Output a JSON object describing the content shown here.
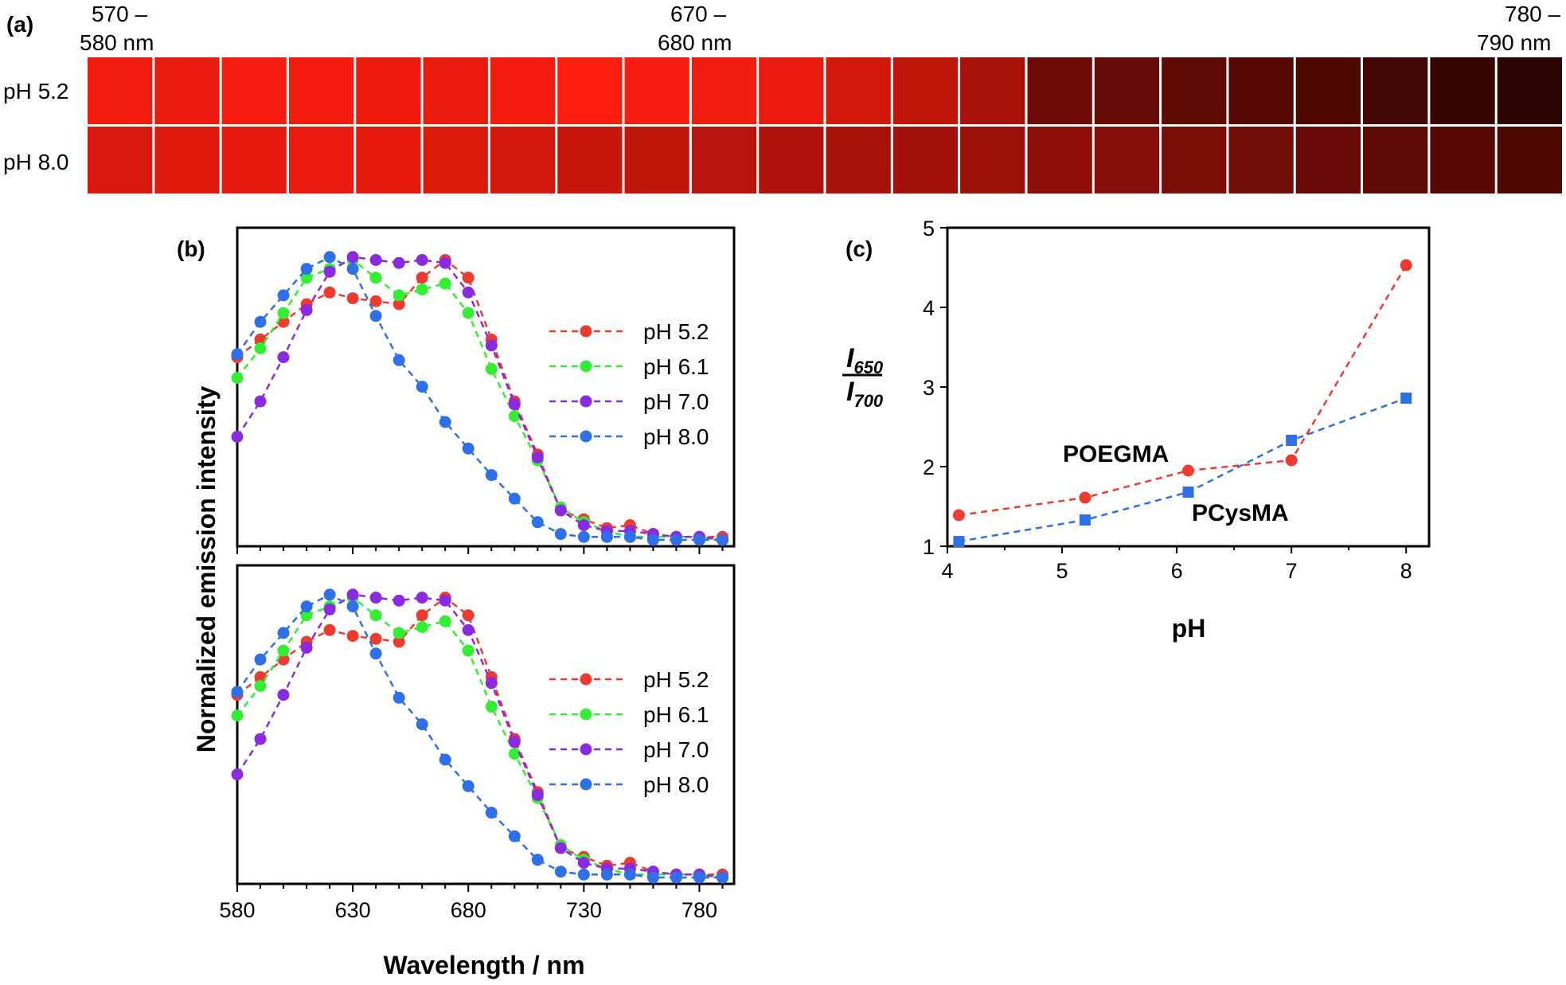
{
  "panel_a": {
    "panel_label": "(a)",
    "wavelength_labels": [
      {
        "line1": "570 –",
        "line2": "580 nm"
      },
      {
        "line1": "670 –",
        "line2": "680 nm"
      },
      {
        "line1": "780 –",
        "line2": "790 nm"
      }
    ],
    "row_labels": [
      "pH 5.2",
      "pH 8.0"
    ],
    "tile_colors": {
      "row_1": [
        "#f11b0e",
        "#ea1a0e",
        "#f61c0f",
        "#f31b0e",
        "#ee1a0e",
        "#e91a0e",
        "#f51c0f",
        "#fb1e10",
        "#f81d10",
        "#f21c0f",
        "#ea1a0e",
        "#d4180c",
        "#bf150b",
        "#a9120a",
        "#6d0b06",
        "#650a06",
        "#5e0a05",
        "#560905",
        "#4d0804",
        "#410703",
        "#360603",
        "#2c0502"
      ],
      "row_2": [
        "#d8180c",
        "#dd190d",
        "#e51a0e",
        "#e81b0e",
        "#e51a0e",
        "#dc190d",
        "#d2170c",
        "#c8160b",
        "#bf150b",
        "#b7140b",
        "#af130a",
        "#a8120a",
        "#a11109",
        "#991009",
        "#8f0f08",
        "#860e08",
        "#7c0d07",
        "#720c06",
        "#680b06",
        "#5e0a05",
        "#560905",
        "#4e0804"
      ]
    }
  },
  "panel_b": {
    "panel_label": "(b)",
    "ylabel": "Normalized emission intensity",
    "xlabel": "Wavelength / nm"
  },
  "panel_c": {
    "panel_label": "(c)",
    "ylabel": {
      "main": "I",
      "numerator_sub": "650",
      "denominator_sub": "700"
    },
    "xlabel": "pH",
    "annotations": [
      "POEGMA",
      "PCysMA"
    ]
  },
  "colors": {
    "ph52": "#ee3b2f",
    "ph61": "#33ee33",
    "ph70": "#8a2be2",
    "ph80": "#2f6fe8",
    "poegma": "#ee3b2f",
    "pcysma": "#2f6fe8"
  },
  "chart_data": [
    {
      "type": "line",
      "panel": "b-top",
      "x": [
        580,
        590,
        600,
        610,
        620,
        630,
        640,
        650,
        660,
        670,
        680,
        690,
        700,
        710,
        720,
        730,
        740,
        750,
        760,
        770,
        780,
        790
      ],
      "series": [
        {
          "name": "pH 5.2",
          "values": [
            0.62,
            0.68,
            0.74,
            0.8,
            0.84,
            0.82,
            0.81,
            0.8,
            0.89,
            0.95,
            0.89,
            0.68,
            0.47,
            0.29,
            0.1,
            0.07,
            0.04,
            0.05,
            0.02,
            0.01,
            0.01,
            0.01
          ]
        },
        {
          "name": "pH 6.1",
          "values": [
            0.55,
            0.65,
            0.77,
            0.89,
            0.92,
            0.95,
            0.89,
            0.83,
            0.85,
            0.87,
            0.77,
            0.58,
            0.42,
            0.27,
            0.11,
            0.06,
            0.03,
            0.01,
            0.01,
            0.01,
            0.01,
            0.0
          ]
        },
        {
          "name": "pH 7.0",
          "values": [
            0.35,
            0.47,
            0.62,
            0.78,
            0.91,
            0.96,
            0.95,
            0.94,
            0.95,
            0.94,
            0.84,
            0.66,
            0.46,
            0.28,
            0.1,
            0.05,
            0.03,
            0.03,
            0.02,
            0.01,
            0.01,
            0.0
          ]
        },
        {
          "name": "pH 8.0",
          "values": [
            0.63,
            0.74,
            0.83,
            0.92,
            0.96,
            0.92,
            0.76,
            0.61,
            0.52,
            0.4,
            0.31,
            0.22,
            0.14,
            0.06,
            0.02,
            0.01,
            0.01,
            0.01,
            0.0,
            0.0,
            0.0,
            0.0
          ]
        }
      ],
      "xlim": [
        580,
        795
      ],
      "ylim": [
        0,
        1
      ]
    },
    {
      "type": "line",
      "panel": "b-bottom",
      "x": [
        580,
        590,
        600,
        610,
        620,
        630,
        640,
        650,
        660,
        670,
        680,
        690,
        700,
        710,
        720,
        730,
        740,
        750,
        760,
        770,
        780,
        790
      ],
      "series": [
        {
          "name": "pH 5.2",
          "values": [
            0.62,
            0.68,
            0.74,
            0.8,
            0.84,
            0.82,
            0.81,
            0.8,
            0.89,
            0.95,
            0.89,
            0.68,
            0.47,
            0.29,
            0.1,
            0.07,
            0.04,
            0.05,
            0.02,
            0.01,
            0.01,
            0.01
          ]
        },
        {
          "name": "pH 6.1",
          "values": [
            0.55,
            0.65,
            0.77,
            0.89,
            0.92,
            0.95,
            0.89,
            0.83,
            0.85,
            0.87,
            0.77,
            0.58,
            0.42,
            0.27,
            0.11,
            0.06,
            0.03,
            0.01,
            0.01,
            0.01,
            0.01,
            0.0
          ]
        },
        {
          "name": "pH 7.0",
          "values": [
            0.35,
            0.47,
            0.62,
            0.78,
            0.91,
            0.96,
            0.95,
            0.94,
            0.95,
            0.94,
            0.84,
            0.66,
            0.46,
            0.28,
            0.1,
            0.05,
            0.03,
            0.03,
            0.02,
            0.01,
            0.01,
            0.0
          ]
        },
        {
          "name": "pH 8.0",
          "values": [
            0.63,
            0.74,
            0.83,
            0.92,
            0.96,
            0.92,
            0.76,
            0.61,
            0.52,
            0.4,
            0.31,
            0.22,
            0.14,
            0.06,
            0.02,
            0.01,
            0.01,
            0.01,
            0.0,
            0.0,
            0.0,
            0.0
          ]
        }
      ],
      "xlim": [
        580,
        795
      ],
      "ylim": [
        0,
        1
      ],
      "xticks": [
        580,
        630,
        680,
        730,
        780
      ]
    },
    {
      "type": "line",
      "panel": "c",
      "x": [
        4.1,
        5.2,
        6.1,
        7.0,
        8.0
      ],
      "series": [
        {
          "name": "POEGMA",
          "marker": "circle",
          "values": [
            1.39,
            1.61,
            1.95,
            2.08,
            4.53
          ]
        },
        {
          "name": "PCysMA",
          "marker": "square",
          "values": [
            1.06,
            1.33,
            1.68,
            2.33,
            2.86
          ]
        }
      ],
      "xlim": [
        4,
        8.2
      ],
      "ylim": [
        1,
        5
      ],
      "xticks": [
        4,
        5,
        6,
        7,
        8
      ],
      "yticks": [
        1,
        2,
        3,
        4,
        5
      ]
    }
  ]
}
